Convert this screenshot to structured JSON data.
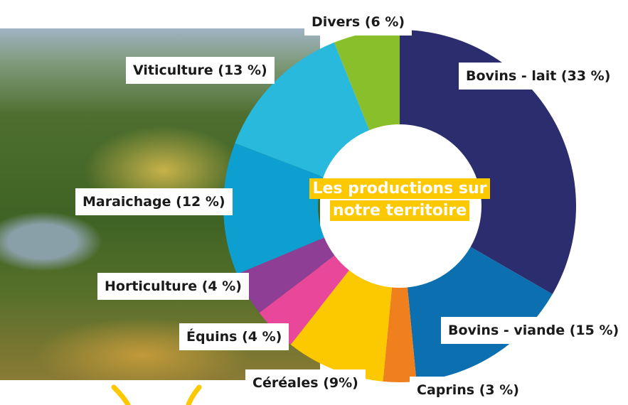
{
  "chart_data": {
    "type": "donut",
    "title": "Les productions sur notre territoire",
    "values": [
      33,
      15,
      3,
      9,
      4,
      4,
      12,
      13,
      6
    ],
    "value_labels": [
      "Bovins - lait (33 %)",
      "Bovins - viande (15 %)",
      "Caprins (3 %)",
      "Céréales (9%)",
      "Équins (4 %)",
      "Horticulture (4 %)",
      "Maraichage (12 %)",
      "Viticulture (13 %)",
      "Divers (6 %)"
    ],
    "colors": [
      "#2b2d6e",
      "#0b6fb0",
      "#f07f1e",
      "#fcc800",
      "#e8479a",
      "#8e3f95",
      "#0e9fd1",
      "#29b9dc",
      "#88bf2a"
    ]
  }
}
